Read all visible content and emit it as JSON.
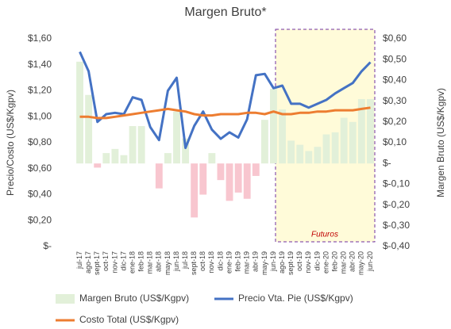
{
  "chart_data": {
    "type": "combo",
    "title": "Margen Bruto*",
    "ylabel": "Precio/Costo (US$/Kgpv)",
    "y2label": "Margen Bruto (US$/Kgpv)",
    "annotation": "Futuros",
    "categories": [
      "jul-17",
      "ago-17",
      "sept-17",
      "oct-17",
      "nov-17",
      "dic-17",
      "ene-18",
      "feb-18",
      "mar-18",
      "abr-18",
      "may-18",
      "jun-18",
      "jul-18",
      "sept-18",
      "oct-18",
      "nov-18",
      "dic-18",
      "ene-19",
      "feb-19",
      "mar-19",
      "abr-19",
      "may-19",
      "jun-19",
      "ago-19",
      "sept-19",
      "oct-19",
      "nov-19",
      "dic-19",
      "ene-20",
      "feb-20",
      "mar-20",
      "abr-20",
      "may-20",
      "jun-20"
    ],
    "ylim": [
      0,
      1.6
    ],
    "yticks": [
      {
        "value": 0,
        "label": "$-"
      },
      {
        "value": 0.2,
        "label": "$0,20"
      },
      {
        "value": 0.4,
        "label": "$0,40"
      },
      {
        "value": 0.6,
        "label": "$0,60"
      },
      {
        "value": 0.8,
        "label": "$0,80"
      },
      {
        "value": 1.0,
        "label": "$1,00"
      },
      {
        "value": 1.2,
        "label": "$1,20"
      },
      {
        "value": 1.4,
        "label": "$1,40"
      },
      {
        "value": 1.6,
        "label": "$1,60"
      }
    ],
    "y2lim": [
      -0.4,
      0.6
    ],
    "y2ticks": [
      {
        "value": -0.4,
        "label": "$-0,40"
      },
      {
        "value": -0.3,
        "label": "$-0,30"
      },
      {
        "value": -0.2,
        "label": "$-0,20"
      },
      {
        "value": -0.1,
        "label": "$-0,10"
      },
      {
        "value": 0,
        "label": "$-"
      },
      {
        "value": 0.1,
        "label": "$0,10"
      },
      {
        "value": 0.2,
        "label": "$0,20"
      },
      {
        "value": 0.3,
        "label": "$0,30"
      },
      {
        "value": 0.4,
        "label": "$0,40"
      },
      {
        "value": 0.5,
        "label": "$0,50"
      },
      {
        "value": 0.6,
        "label": "$0,60"
      }
    ],
    "series": [
      {
        "name": "Margen Bruto (US$/Kgpv)",
        "type": "bar",
        "axis": "y2",
        "color": "#e2f0d9",
        "negative_color": "#f8c6cf",
        "values": [
          0.49,
          0.33,
          -0.02,
          0.05,
          0.07,
          0.04,
          0.18,
          0.18,
          0,
          -0.12,
          0.05,
          0.25,
          0.12,
          -0.26,
          -0.15,
          0.05,
          -0.08,
          -0.18,
          -0.14,
          -0.17,
          -0.06,
          0.21,
          0.36,
          0.26,
          0.11,
          0.09,
          0.06,
          0.08,
          0.14,
          0.15,
          0.22,
          0.2,
          0.31,
          0.31
        ]
      },
      {
        "name": "Precio Vta. Pie (US$/Kgpv)",
        "type": "line",
        "color": "#4472c4",
        "values": [
          1.5,
          1.35,
          0.96,
          1.02,
          1.03,
          1.02,
          1.15,
          1.13,
          0.92,
          0.82,
          1.2,
          1.3,
          0.76,
          0.93,
          1.04,
          0.9,
          0.83,
          0.88,
          0.84,
          0.98,
          1.32,
          1.33,
          1.22,
          1.24,
          1.1,
          1.1,
          1.07,
          1.1,
          1.13,
          1.18,
          1.22,
          1.26,
          1.35,
          1.42
        ]
      },
      {
        "name": "Costo Total (US$/Kgpv)",
        "type": "line",
        "color": "#ed7d31",
        "values": [
          1.0,
          1.0,
          0.99,
          0.99,
          1.0,
          1.01,
          1.02,
          1.03,
          1.04,
          1.05,
          1.06,
          1.05,
          1.04,
          1.02,
          1.01,
          1.01,
          1.02,
          1.02,
          1.02,
          1.03,
          1.03,
          1.02,
          1.04,
          1.02,
          1.02,
          1.03,
          1.03,
          1.04,
          1.04,
          1.05,
          1.05,
          1.05,
          1.06,
          1.07
        ]
      }
    ]
  }
}
